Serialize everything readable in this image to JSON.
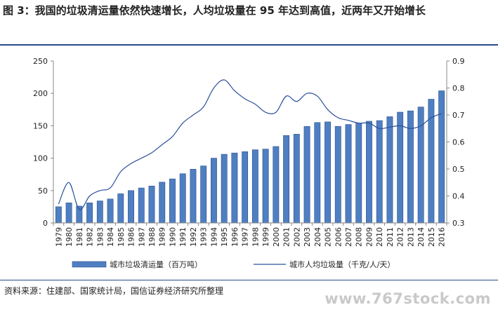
{
  "title": "图 3：我国的垃圾清运量依然快速增长，人均垃圾量在 95 年达到高值，近两年又开始增长",
  "source": "资料来源：住建部、国家统计局，国信证券经济研究所整理",
  "watermark": "www.767stock.com",
  "colors": {
    "bar_fill": "#4f7fc2",
    "bar_stroke": "#2a4f8a",
    "line": "#2a4f9a",
    "axis": "#888888",
    "rule": "#2b4a8a"
  },
  "chart_data": {
    "type": "bar+line",
    "categories": [
      "1979",
      "1980",
      "1981",
      "1982",
      "1983",
      "1984",
      "1985",
      "1986",
      "1987",
      "1988",
      "1989",
      "1990",
      "1991",
      "1992",
      "1993",
      "1994",
      "1995",
      "1996",
      "1997",
      "1998",
      "1999",
      "2000",
      "2001",
      "2002",
      "2003",
      "2004",
      "2005",
      "2006",
      "2007",
      "2008",
      "2009",
      "2010",
      "2011",
      "2012",
      "2013",
      "2014",
      "2015",
      "2016"
    ],
    "series": [
      {
        "name": "城市垃圾清运量（百万吨）",
        "type": "bar",
        "axis": "left",
        "values": [
          25,
          31,
          26,
          31,
          34,
          37,
          45,
          50,
          54,
          57,
          63,
          68,
          76,
          83,
          88,
          100,
          106,
          108,
          110,
          113,
          114,
          118,
          135,
          137,
          149,
          155,
          156,
          149,
          152,
          154,
          157,
          158,
          164,
          171,
          173,
          179,
          191,
          204
        ]
      },
      {
        "name": "城市人均垃圾量（千克/人/天）",
        "type": "line",
        "axis": "right",
        "values": [
          0.37,
          0.45,
          0.35,
          0.4,
          0.42,
          0.43,
          0.49,
          0.52,
          0.54,
          0.56,
          0.59,
          0.62,
          0.67,
          0.7,
          0.73,
          0.8,
          0.83,
          0.79,
          0.76,
          0.74,
          0.71,
          0.71,
          0.77,
          0.75,
          0.78,
          0.77,
          0.72,
          0.69,
          0.68,
          0.67,
          0.67,
          0.65,
          0.655,
          0.66,
          0.65,
          0.66,
          0.69,
          0.705
        ]
      }
    ],
    "y_left": {
      "min": 0,
      "max": 250,
      "ticks": [
        0,
        50,
        100,
        150,
        200,
        250
      ]
    },
    "y_right": {
      "min": 0.3,
      "max": 0.9,
      "ticks": [
        "0.3",
        "0.4",
        "0.5",
        "0.6",
        "0.7",
        "0.8",
        "0.9"
      ]
    },
    "legend_position": "bottom",
    "grid": false
  }
}
